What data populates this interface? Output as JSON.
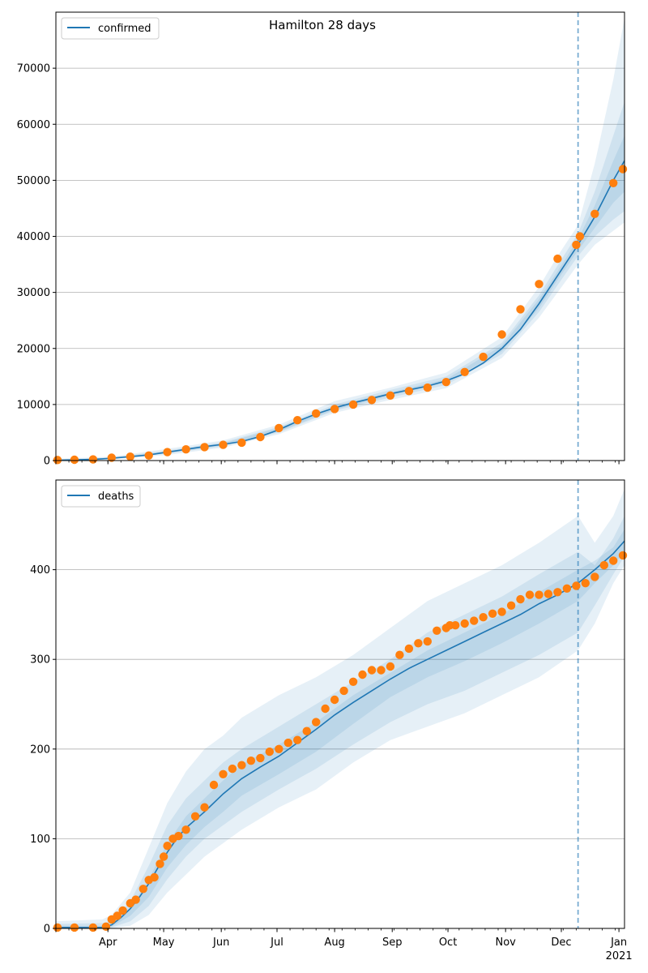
{
  "chart_data": [
    {
      "type": "line",
      "title": "Hamilton 28 days",
      "xlabel": "",
      "ylabel": "",
      "legend": {
        "label": "confirmed",
        "placement": "top-left"
      },
      "grid": "y",
      "xlim_days": [
        0,
        306
      ],
      "ylim": [
        0,
        80000
      ],
      "yticks": [
        0,
        10000,
        20000,
        30000,
        40000,
        50000,
        60000,
        70000
      ],
      "forecast_start_day": 281,
      "series": [
        {
          "name": "confirmed",
          "kind": "model-median",
          "x": [
            0,
            20,
            30,
            40,
            50,
            60,
            70,
            80,
            90,
            100,
            110,
            120,
            130,
            140,
            150,
            160,
            170,
            180,
            190,
            200,
            210,
            220,
            230,
            240,
            250,
            260,
            270,
            281,
            290,
            300,
            306
          ],
          "y": [
            50,
            200,
            400,
            700,
            1000,
            1500,
            2000,
            2500,
            2900,
            3400,
            4300,
            5500,
            7000,
            8300,
            9400,
            10300,
            11100,
            11900,
            12600,
            13300,
            14200,
            15500,
            17400,
            20000,
            23400,
            28000,
            33000,
            38500,
            43500,
            50000,
            53500
          ]
        },
        {
          "name": "observed",
          "kind": "scatter",
          "x": [
            0,
            10,
            20,
            30,
            40,
            50,
            60,
            70,
            80,
            90,
            100,
            110,
            120,
            130,
            140,
            150,
            160,
            170,
            180,
            190,
            200,
            210,
            220,
            230,
            240,
            250,
            260,
            270,
            280,
            282,
            290,
            300,
            306
          ],
          "y": [
            100,
            150,
            200,
            500,
            700,
            900,
            1500,
            2000,
            2400,
            2800,
            3200,
            4200,
            5800,
            7200,
            8400,
            9200,
            10000,
            10800,
            11600,
            12400,
            13000,
            14000,
            15800,
            18500,
            22500,
            27000,
            31500,
            36000,
            38500,
            40000,
            44000,
            49500,
            52000
          ]
        }
      ],
      "bands": [
        {
          "level": "outer",
          "x": [
            0,
            30,
            60,
            90,
            120,
            150,
            180,
            210,
            240,
            260,
            270,
            281,
            290,
            300,
            306
          ],
          "lower": [
            0,
            200,
            1000,
            2300,
            4700,
            8500,
            10800,
            12900,
            18300,
            25500,
            30000,
            35000,
            38500,
            41000,
            42500
          ],
          "upper": [
            300,
            700,
            2100,
            3600,
            6400,
            10600,
            13000,
            15700,
            22000,
            31000,
            36500,
            42000,
            53000,
            68000,
            79000
          ]
        },
        {
          "level": "middle",
          "x": [
            0,
            30,
            60,
            90,
            120,
            150,
            180,
            210,
            240,
            260,
            270,
            281,
            290,
            300,
            306
          ],
          "lower": [
            0,
            300,
            1250,
            2550,
            5000,
            8900,
            11250,
            13500,
            19000,
            26500,
            31300,
            36500,
            40000,
            43000,
            44500
          ],
          "upper": [
            200,
            550,
            1800,
            3300,
            6000,
            10000,
            12600,
            15000,
            21000,
            29500,
            34800,
            40500,
            48000,
            58000,
            64000
          ]
        },
        {
          "level": "inner",
          "x": [
            0,
            30,
            60,
            90,
            120,
            150,
            180,
            210,
            240,
            260,
            270,
            281,
            290,
            300,
            306
          ],
          "lower": [
            20,
            350,
            1350,
            2700,
            5200,
            9100,
            11600,
            13900,
            19500,
            27200,
            32200,
            37500,
            41500,
            46000,
            48000
          ],
          "upper": [
            100,
            450,
            1650,
            3100,
            5800,
            9700,
            12200,
            14500,
            20500,
            28800,
            33800,
            39500,
            45500,
            53500,
            58000
          ]
        }
      ]
    },
    {
      "type": "line",
      "title": "",
      "xlabel": "",
      "ylabel": "",
      "legend": {
        "label": "deaths",
        "placement": "top-left"
      },
      "grid": "y",
      "xlim_days": [
        0,
        306
      ],
      "ylim": [
        0,
        500
      ],
      "yticks": [
        0,
        100,
        200,
        300,
        400
      ],
      "forecast_start_day": 281,
      "x_tick_labels": [
        {
          "day": 28,
          "label": "Apr"
        },
        {
          "day": 58,
          "label": "May"
        },
        {
          "day": 89,
          "label": "Jun"
        },
        {
          "day": 119,
          "label": "Jul"
        },
        {
          "day": 150,
          "label": "Aug"
        },
        {
          "day": 181,
          "label": "Sep"
        },
        {
          "day": 211,
          "label": "Oct"
        },
        {
          "day": 242,
          "label": "Nov"
        },
        {
          "day": 272,
          "label": "Dec"
        },
        {
          "day": 303,
          "label": "Jan"
        }
      ],
      "x_year_label": {
        "day": 303,
        "label": "2021"
      },
      "series": [
        {
          "name": "deaths",
          "kind": "model-median",
          "x": [
            0,
            25,
            30,
            35,
            40,
            45,
            50,
            55,
            60,
            65,
            70,
            80,
            90,
            100,
            110,
            120,
            130,
            140,
            150,
            160,
            170,
            180,
            190,
            200,
            210,
            220,
            230,
            240,
            250,
            260,
            270,
            281,
            290,
            300,
            306
          ],
          "y": [
            1,
            1,
            4,
            12,
            22,
            35,
            50,
            68,
            85,
            100,
            112,
            130,
            150,
            167,
            180,
            192,
            207,
            222,
            238,
            252,
            265,
            278,
            290,
            300,
            310,
            320,
            330,
            340,
            350,
            362,
            372,
            385,
            400,
            418,
            432
          ]
        },
        {
          "name": "observed-deaths",
          "kind": "scatter",
          "x": [
            0,
            10,
            20,
            27,
            30,
            33,
            36,
            40,
            43,
            47,
            50,
            53,
            56,
            58,
            60,
            63,
            66,
            70,
            75,
            80,
            85,
            90,
            95,
            100,
            105,
            110,
            115,
            120,
            125,
            130,
            135,
            140,
            145,
            150,
            155,
            160,
            165,
            170,
            175,
            180,
            185,
            190,
            195,
            200,
            205,
            210,
            212,
            215,
            220,
            225,
            230,
            235,
            240,
            245,
            250,
            255,
            260,
            265,
            270,
            275,
            280,
            285,
            290,
            295,
            300,
            306
          ],
          "y": [
            1,
            1,
            1,
            2,
            10,
            14,
            20,
            28,
            32,
            44,
            54,
            57,
            72,
            80,
            92,
            100,
            103,
            110,
            125,
            135,
            160,
            172,
            178,
            182,
            187,
            190,
            197,
            200,
            207,
            210,
            220,
            230,
            245,
            255,
            265,
            275,
            283,
            288,
            288,
            292,
            305,
            312,
            318,
            320,
            332,
            335,
            338,
            338,
            340,
            343,
            347,
            351,
            353,
            360,
            367,
            372,
            372,
            373,
            375,
            379,
            382,
            385,
            392,
            405,
            410,
            416
          ]
        }
      ],
      "bands": [
        {
          "level": "outer",
          "x": [
            0,
            25,
            30,
            40,
            50,
            60,
            70,
            80,
            90,
            100,
            120,
            140,
            160,
            180,
            200,
            220,
            240,
            260,
            281,
            290,
            300,
            306
          ],
          "lower": [
            0,
            0,
            0,
            3,
            15,
            40,
            60,
            80,
            95,
            110,
            135,
            155,
            185,
            210,
            225,
            240,
            260,
            280,
            310,
            340,
            385,
            405
          ],
          "upper": [
            8,
            10,
            15,
            40,
            90,
            140,
            175,
            200,
            215,
            235,
            260,
            280,
            305,
            335,
            365,
            385,
            405,
            430,
            460,
            430,
            460,
            490
          ]
        },
        {
          "level": "middle",
          "x": [
            0,
            25,
            30,
            40,
            50,
            60,
            70,
            80,
            90,
            100,
            120,
            140,
            160,
            180,
            200,
            220,
            240,
            260,
            281,
            290,
            300,
            306
          ],
          "lower": [
            0,
            0,
            1,
            8,
            25,
            55,
            80,
            100,
            115,
            130,
            155,
            178,
            205,
            230,
            250,
            265,
            285,
            305,
            330,
            360,
            395,
            415
          ],
          "upper": [
            5,
            6,
            8,
            30,
            70,
            115,
            145,
            165,
            185,
            200,
            225,
            250,
            275,
            300,
            330,
            350,
            370,
            395,
            420,
            405,
            435,
            460
          ]
        },
        {
          "level": "inner",
          "x": [
            0,
            25,
            30,
            40,
            50,
            60,
            70,
            80,
            90,
            100,
            120,
            140,
            160,
            180,
            200,
            220,
            240,
            260,
            281,
            290,
            300,
            306
          ],
          "lower": [
            0,
            0,
            2,
            14,
            35,
            68,
            93,
            113,
            130,
            148,
            172,
            197,
            228,
            258,
            280,
            298,
            318,
            340,
            365,
            385,
            405,
            420
          ],
          "upper": [
            3,
            3,
            5,
            22,
            55,
            95,
            125,
            145,
            165,
            183,
            205,
            230,
            260,
            285,
            310,
            330,
            350,
            375,
            400,
            410,
            425,
            445
          ]
        }
      ]
    }
  ]
}
